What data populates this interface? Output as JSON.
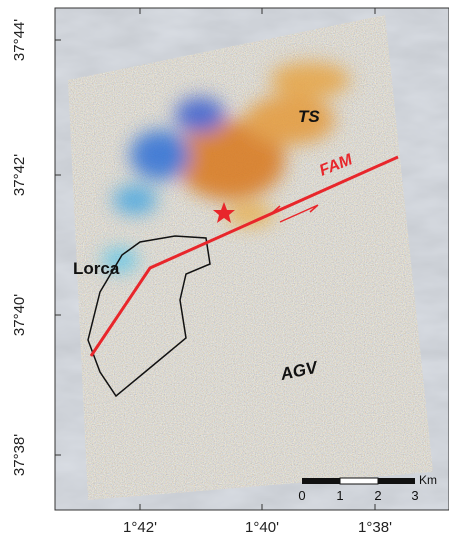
{
  "map": {
    "y_axis_labels": [
      "37°44'",
      "37°42'",
      "37°40'",
      "37°38'"
    ],
    "x_axis_labels": [
      "1°42'",
      "1°40'",
      "1°38'"
    ],
    "labels": {
      "ts": "TS",
      "fam": "FAM",
      "lorca": "Lorca",
      "agv": "AGV"
    },
    "scale_bar": {
      "ticks": [
        "0",
        "1",
        "2",
        "3"
      ],
      "unit": "Km"
    }
  }
}
